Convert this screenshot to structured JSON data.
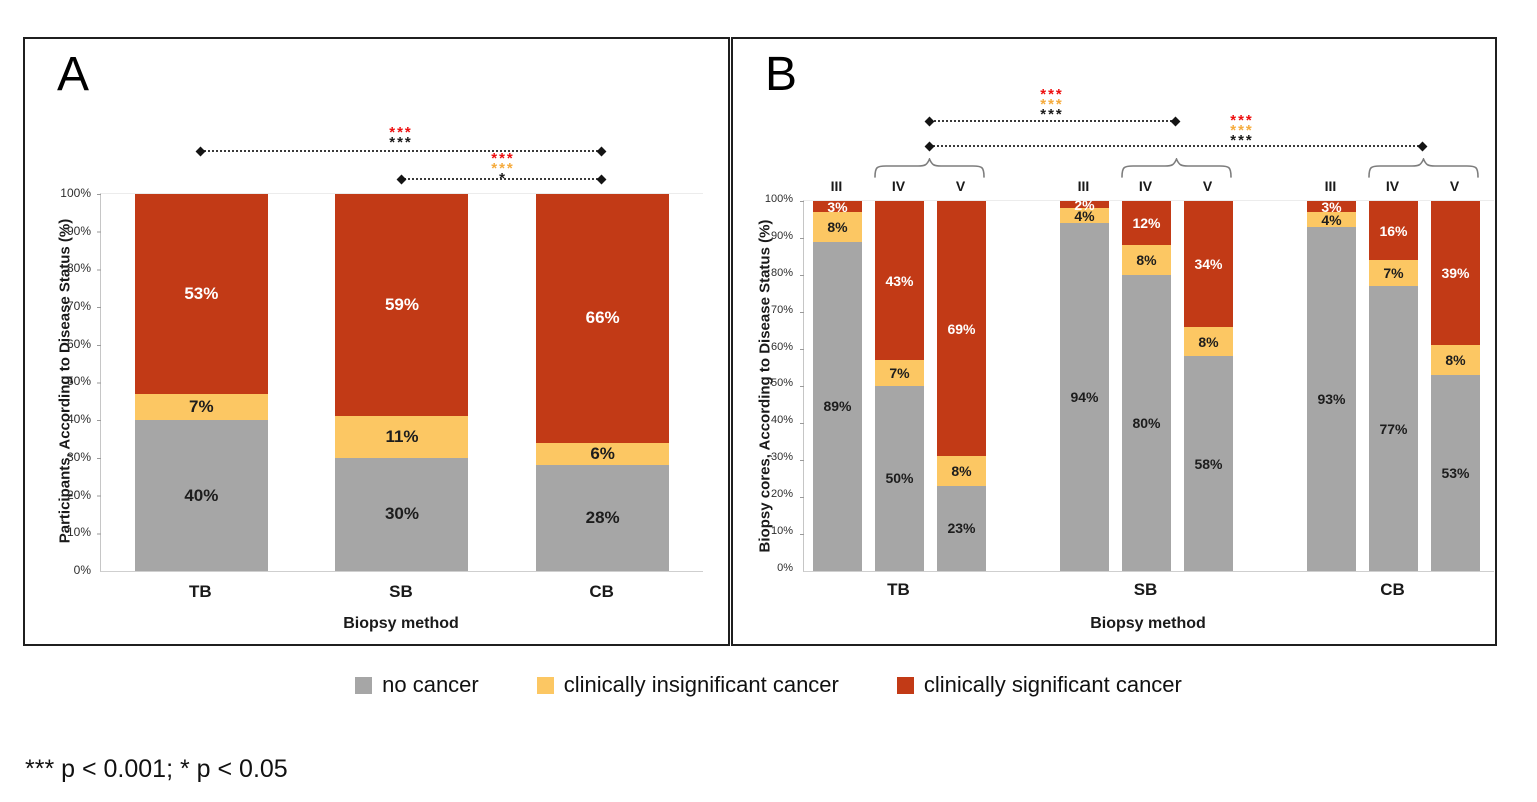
{
  "figure": {
    "panel_a_label": "A",
    "panel_b_label": "B",
    "footnote": "*** p < 0.001; * p < 0.05"
  },
  "colors": {
    "no_cancer": "#a6a6a6",
    "insignificant_cancer": "#fcc763",
    "significant_cancer": "#c23a16",
    "star_red": "#ee0f0f",
    "star_yellow": "#f5ab3d",
    "star_black": "#1b1b1b"
  },
  "legend": {
    "items": [
      {
        "label": "no cancer",
        "color_key": "no_cancer"
      },
      {
        "label": "clinically insignificant cancer",
        "color_key": "insignificant_cancer"
      },
      {
        "label": "clinically significant cancer",
        "color_key": "significant_cancer"
      }
    ]
  },
  "chart_data": [
    {
      "panel": "A",
      "type": "bar",
      "stacked": true,
      "xlabel": "Biopsy method",
      "ylabel": "Participants, According to Disease Status (%)",
      "ylim": [
        0,
        100
      ],
      "yticks": [
        "100%",
        "90%",
        "80%",
        "70%",
        "60%",
        "50%",
        "40%",
        "30%",
        "20%",
        "10%",
        "0%"
      ],
      "categories": [
        "TB",
        "SB",
        "CB"
      ],
      "series": [
        {
          "name": "no cancer",
          "color_key": "no_cancer",
          "values": [
            40,
            30,
            28
          ]
        },
        {
          "name": "clinically insignificant cancer",
          "color_key": "insignificant_cancer",
          "values": [
            7,
            11,
            6
          ]
        },
        {
          "name": "clinically significant cancer",
          "color_key": "significant_cancer",
          "values": [
            53,
            59,
            66
          ]
        }
      ],
      "significance": [
        {
          "compare": "TB vs CB",
          "rows": [
            {
              "text": "***",
              "color_key": "star_red"
            },
            {
              "text": "***",
              "color_key": "star_black"
            }
          ]
        },
        {
          "compare": "SB vs CB",
          "rows": [
            {
              "text": "***",
              "color_key": "star_red"
            },
            {
              "text": "***",
              "color_key": "star_yellow"
            },
            {
              "text": "*",
              "color_key": "star_black"
            }
          ]
        }
      ]
    },
    {
      "panel": "B",
      "type": "bar",
      "stacked": true,
      "xlabel": "Biopsy method",
      "ylabel": "Biopsy cores, According to Disease Status (%)",
      "ylim": [
        0,
        100
      ],
      "yticks": [
        "100%",
        "90%",
        "80%",
        "70%",
        "60%",
        "50%",
        "40%",
        "30%",
        "20%",
        "10%",
        "0%"
      ],
      "groups": [
        {
          "label": "TB",
          "subs": [
            "III",
            "IV",
            "V"
          ]
        },
        {
          "label": "SB",
          "subs": [
            "III",
            "IV",
            "V"
          ]
        },
        {
          "label": "CB",
          "subs": [
            "III",
            "IV",
            "V"
          ]
        }
      ],
      "series": [
        {
          "name": "no cancer",
          "color_key": "no_cancer",
          "values": [
            89,
            50,
            23,
            94,
            80,
            58,
            93,
            77,
            53
          ]
        },
        {
          "name": "clinically insignificant cancer",
          "color_key": "insignificant_cancer",
          "values": [
            8,
            7,
            8,
            4,
            8,
            8,
            4,
            7,
            8
          ]
        },
        {
          "name": "clinically significant cancer",
          "color_key": "significant_cancer",
          "values": [
            3,
            43,
            69,
            2,
            12,
            34,
            3,
            16,
            39
          ]
        }
      ],
      "significance": [
        {
          "compare": "TB IV+V vs SB IV+V",
          "rows": [
            {
              "text": "***",
              "color_key": "star_red"
            },
            {
              "text": "***",
              "color_key": "star_yellow"
            },
            {
              "text": "***",
              "color_key": "star_black"
            }
          ]
        },
        {
          "compare": "TB IV+V vs CB IV+V",
          "rows": [
            {
              "text": "***",
              "color_key": "star_red"
            },
            {
              "text": "***",
              "color_key": "star_yellow"
            },
            {
              "text": "***",
              "color_key": "star_black"
            }
          ]
        }
      ]
    }
  ]
}
